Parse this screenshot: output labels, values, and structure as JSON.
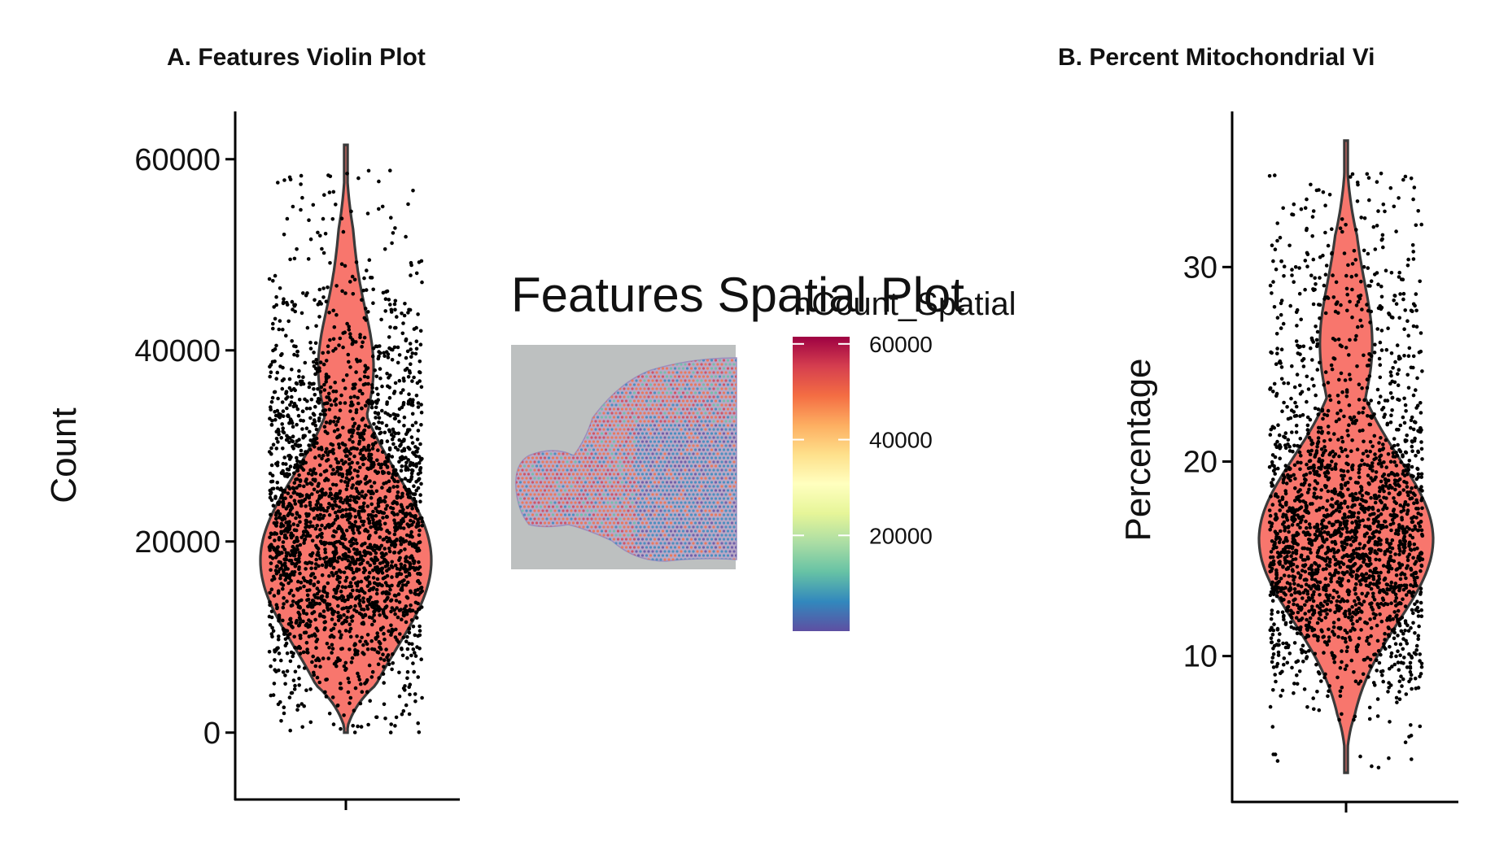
{
  "chart_data": [
    {
      "type": "violin",
      "title": "A. Features Violin Plot",
      "ylabel": "Count",
      "xlabel": "",
      "ylim": [
        -7000,
        65000
      ],
      "yticks": [
        0,
        20000,
        40000,
        60000
      ],
      "ytick_labels": [
        "0",
        "20000",
        "40000",
        "60000"
      ],
      "fill_color": "#F8766D",
      "point_color": "#000000",
      "distribution": {
        "min": 0,
        "max": 61500,
        "bulk_center": 19000,
        "peak_density_value": 18000,
        "upper_tail_from": 35000
      },
      "grid": false,
      "legend": "none"
    },
    {
      "type": "heatmap",
      "title": "Features Spatial Plot",
      "legend_title": "nCount_Spatial",
      "colorbar_ticks": [
        20000,
        40000,
        60000
      ],
      "colorbar_labels": [
        "20000",
        "40000",
        "60000"
      ],
      "colorbar_range": [
        0,
        61500
      ],
      "palette": "Spectral (reversed)",
      "palette_colors": [
        "#5E4FA2",
        "#3288BD",
        "#66C2A5",
        "#ABDDA4",
        "#E6F598",
        "#FFFFBF",
        "#FEE08B",
        "#FDAE61",
        "#F46D43",
        "#D53E4F",
        "#9E0142"
      ],
      "background_color": "#BDC0C0"
    },
    {
      "type": "violin",
      "title": "B. Percent Mitochondrial Vi",
      "ylabel": "Percentage",
      "xlabel": "",
      "ylim": [
        2.5,
        38
      ],
      "yticks": [
        10,
        20,
        30
      ],
      "ytick_labels": [
        "10",
        "20",
        "30"
      ],
      "fill_color": "#F8766D",
      "point_color": "#000000",
      "distribution": {
        "min": 4,
        "max": 36.5,
        "bulk_center": 16,
        "peak_density_value": 16,
        "upper_tail_from": 24
      },
      "grid": false,
      "legend": "none"
    }
  ]
}
